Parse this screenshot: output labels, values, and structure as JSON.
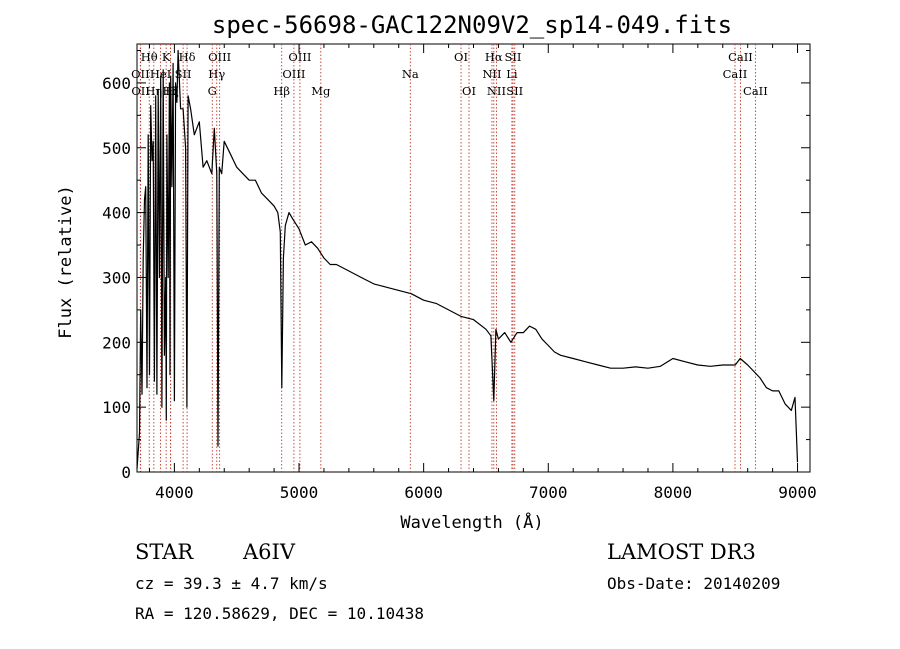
{
  "chart_data": {
    "type": "line",
    "title": "spec-56698-GAC122N09V2_sp14-049.fits",
    "xlabel": "Wavelength (Å)",
    "ylabel": "Flux (relative)",
    "xlim": [
      3700,
      9100
    ],
    "ylim": [
      0,
      660
    ],
    "xticks": [
      4000,
      5000,
      6000,
      7000,
      8000,
      9000
    ],
    "yticks": [
      0,
      100,
      200,
      300,
      400,
      500,
      600
    ],
    "grid": false,
    "series": [
      {
        "name": "flux",
        "x": [
          3700,
          3720,
          3730,
          3740,
          3750,
          3760,
          3770,
          3780,
          3790,
          3800,
          3810,
          3820,
          3830,
          3840,
          3850,
          3860,
          3870,
          3880,
          3890,
          3900,
          3910,
          3920,
          3930,
          3935,
          3940,
          3950,
          3960,
          3965,
          3970,
          3980,
          3990,
          4000,
          4010,
          4020,
          4030,
          4050,
          4070,
          4090,
          4100,
          4110,
          4130,
          4160,
          4200,
          4230,
          4260,
          4300,
          4320,
          4340,
          4350,
          4360,
          4380,
          4400,
          4450,
          4500,
          4550,
          4600,
          4650,
          4700,
          4750,
          4800,
          4830,
          4850,
          4862,
          4875,
          4890,
          4920,
          4950,
          5000,
          5050,
          5100,
          5150,
          5200,
          5250,
          5300,
          5400,
          5500,
          5600,
          5700,
          5800,
          5900,
          6000,
          6100,
          6200,
          6300,
          6400,
          6500,
          6540,
          6563,
          6580,
          6600,
          6650,
          6700,
          6750,
          6800,
          6850,
          6900,
          6950,
          7000,
          7050,
          7100,
          7200,
          7300,
          7400,
          7500,
          7600,
          7700,
          7800,
          7900,
          8000,
          8100,
          8200,
          8300,
          8400,
          8500,
          8540,
          8600,
          8700,
          8750,
          8800,
          8850,
          8900,
          8950,
          8980,
          9000
        ],
        "values": [
          5,
          60,
          250,
          120,
          330,
          420,
          440,
          130,
          520,
          150,
          565,
          480,
          510,
          140,
          580,
          120,
          590,
          300,
          610,
          100,
          620,
          180,
          300,
          80,
          520,
          300,
          600,
          150,
          610,
          440,
          630,
          110,
          600,
          570,
          650,
          560,
          560,
          500,
          100,
          580,
          560,
          520,
          540,
          470,
          480,
          460,
          530,
          460,
          40,
          470,
          460,
          510,
          490,
          470,
          460,
          450,
          450,
          430,
          420,
          410,
          400,
          370,
          130,
          330,
          380,
          400,
          390,
          375,
          350,
          355,
          345,
          330,
          320,
          320,
          310,
          300,
          290,
          285,
          280,
          275,
          265,
          260,
          250,
          240,
          235,
          220,
          210,
          110,
          220,
          205,
          215,
          200,
          215,
          215,
          225,
          220,
          205,
          195,
          185,
          180,
          175,
          170,
          165,
          160,
          160,
          162,
          160,
          163,
          175,
          170,
          165,
          163,
          165,
          165,
          175,
          165,
          145,
          130,
          125,
          125,
          105,
          95,
          115,
          15
        ]
      }
    ],
    "lines": [
      {
        "name": "Hθ",
        "x": 3798,
        "row": 0
      },
      {
        "name": "OII",
        "x": 3727,
        "row": 1
      },
      {
        "name": "OII",
        "x": 3729,
        "row": 2
      },
      {
        "name": "Hη",
        "x": 3835,
        "row": 2
      },
      {
        "name": "HeI",
        "x": 3889,
        "row": 1
      },
      {
        "name": "K",
        "x": 3934,
        "row": 0
      },
      {
        "name": "Hζ",
        "x": 3970,
        "row": 2
      },
      {
        "name": "H",
        "x": 3969,
        "row": 2
      },
      {
        "name": "Hδ",
        "x": 4102,
        "row": 0
      },
      {
        "name": "SII",
        "x": 4070,
        "row": 1
      },
      {
        "name": "OIII",
        "x": 4363,
        "row": 0
      },
      {
        "name": "Hγ",
        "x": 4340,
        "row": 1
      },
      {
        "name": "G",
        "x": 4304,
        "row": 2
      },
      {
        "name": "Hβ",
        "x": 4861,
        "row": 2
      },
      {
        "name": "OIII",
        "x": 5007,
        "row": 0
      },
      {
        "name": "OIII",
        "x": 4959,
        "row": 1
      },
      {
        "name": "Mg",
        "x": 5175,
        "row": 2
      },
      {
        "name": "Na",
        "x": 5893,
        "row": 1
      },
      {
        "name": "OI",
        "x": 6300,
        "row": 0
      },
      {
        "name": "OI",
        "x": 6364,
        "row": 2
      },
      {
        "name": "Hα",
        "x": 6563,
        "row": 0
      },
      {
        "name": "NII",
        "x": 6548,
        "row": 1
      },
      {
        "name": "NII",
        "x": 6584,
        "row": 2
      },
      {
        "name": "SII",
        "x": 6717,
        "row": 0
      },
      {
        "name": "Li",
        "x": 6708,
        "row": 1
      },
      {
        "name": "SII",
        "x": 6731,
        "row": 2
      },
      {
        "name": "CaII",
        "x": 8542,
        "row": 0
      },
      {
        "name": "CaII",
        "x": 8498,
        "row": 1
      },
      {
        "name": "CaII",
        "x": 8662,
        "row": 2
      }
    ]
  },
  "info": {
    "object_class": "STAR",
    "subclass": "A6IV",
    "survey": "LAMOST DR3",
    "cz": "cz = 39.3 ± 4.7 km/s",
    "obs_date": "Obs-Date: 20140209",
    "coords": "RA = 120.58629, DEC =  10.10438"
  }
}
